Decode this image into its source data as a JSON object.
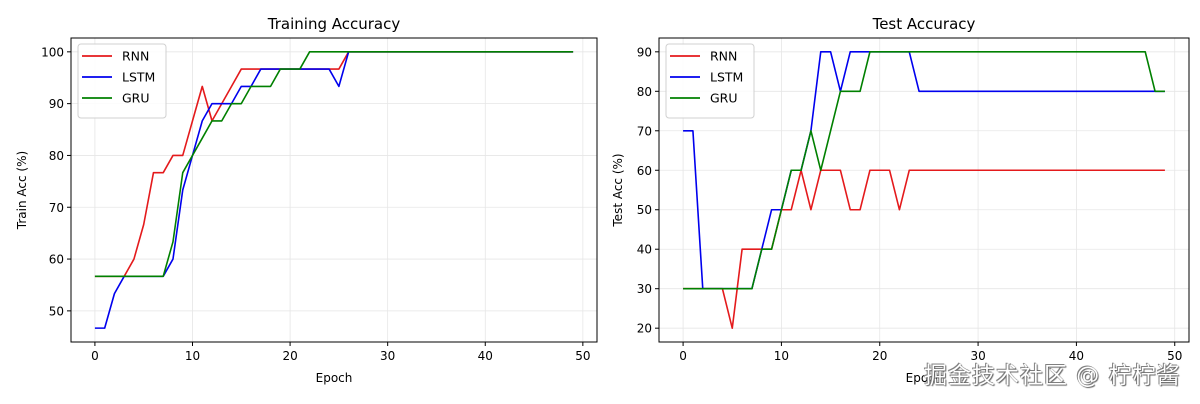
{
  "figure": {
    "watermark": "掘金技术社区 @ 柠柠酱",
    "colors": {
      "RNN": "#e41a1c",
      "LSTM": "#0000ee",
      "GRU": "#008000",
      "grid": "#e6e6e6"
    }
  },
  "chart_data": [
    {
      "type": "line",
      "title": "Training Accuracy",
      "xlabel": "Epoch",
      "ylabel": "Train Acc (%)",
      "xlim": [
        -2.45,
        51.45
      ],
      "ylim": [
        43.99,
        102.67
      ],
      "xticks": [
        0,
        10,
        20,
        30,
        40,
        50
      ],
      "yticks": [
        50,
        60,
        70,
        80,
        90,
        100
      ],
      "grid": true,
      "legend_position": "upper left",
      "x": [
        0,
        1,
        2,
        3,
        4,
        5,
        6,
        7,
        8,
        9,
        10,
        11,
        12,
        13,
        14,
        15,
        16,
        17,
        18,
        19,
        20,
        21,
        22,
        23,
        24,
        25,
        26,
        27,
        28,
        29,
        30,
        31,
        32,
        33,
        34,
        35,
        36,
        37,
        38,
        39,
        40,
        41,
        42,
        43,
        44,
        45,
        46,
        47,
        48,
        49
      ],
      "series": [
        {
          "name": "RNN",
          "color": "#e41a1c",
          "values": [
            56.67,
            56.67,
            56.67,
            56.67,
            60,
            66.67,
            76.67,
            76.67,
            80,
            80,
            86.67,
            93.33,
            86.67,
            90,
            93.33,
            96.67,
            96.67,
            96.67,
            96.67,
            96.67,
            96.67,
            96.67,
            96.67,
            96.67,
            96.67,
            96.67,
            100,
            100,
            100,
            100,
            100,
            100,
            100,
            100,
            100,
            100,
            100,
            100,
            100,
            100,
            100,
            100,
            100,
            100,
            100,
            100,
            100,
            100,
            100,
            100
          ]
        },
        {
          "name": "LSTM",
          "color": "#0000ee",
          "values": [
            46.67,
            46.67,
            53.33,
            56.67,
            56.67,
            56.67,
            56.67,
            56.67,
            60,
            73.33,
            80,
            86.67,
            90,
            90,
            90,
            93.33,
            93.33,
            96.67,
            96.67,
            96.67,
            96.67,
            96.67,
            96.67,
            96.67,
            96.67,
            93.33,
            100,
            100,
            100,
            100,
            100,
            100,
            100,
            100,
            100,
            100,
            100,
            100,
            100,
            100,
            100,
            100,
            100,
            100,
            100,
            100,
            100,
            100,
            100,
            100
          ]
        },
        {
          "name": "GRU",
          "color": "#008000",
          "values": [
            56.67,
            56.67,
            56.67,
            56.67,
            56.67,
            56.67,
            56.67,
            56.67,
            63.33,
            76.67,
            80,
            83.33,
            86.67,
            86.67,
            90,
            90,
            93.33,
            93.33,
            93.33,
            96.67,
            96.67,
            96.67,
            100,
            100,
            100,
            100,
            100,
            100,
            100,
            100,
            100,
            100,
            100,
            100,
            100,
            100,
            100,
            100,
            100,
            100,
            100,
            100,
            100,
            100,
            100,
            100,
            100,
            100,
            100,
            100
          ]
        }
      ]
    },
    {
      "type": "line",
      "title": "Test Accuracy",
      "xlabel": "Epoch",
      "ylabel": "Test Acc (%)",
      "xlim": [
        -2.45,
        51.45
      ],
      "ylim": [
        16.5,
        93.5
      ],
      "xticks": [
        0,
        10,
        20,
        30,
        40,
        50
      ],
      "yticks": [
        20,
        30,
        40,
        50,
        60,
        70,
        80,
        90
      ],
      "grid": true,
      "legend_position": "upper left",
      "x": [
        0,
        1,
        2,
        3,
        4,
        5,
        6,
        7,
        8,
        9,
        10,
        11,
        12,
        13,
        14,
        15,
        16,
        17,
        18,
        19,
        20,
        21,
        22,
        23,
        24,
        25,
        26,
        27,
        28,
        29,
        30,
        31,
        32,
        33,
        34,
        35,
        36,
        37,
        38,
        39,
        40,
        41,
        42,
        43,
        44,
        45,
        46,
        47,
        48,
        49
      ],
      "series": [
        {
          "name": "RNN",
          "color": "#e41a1c",
          "values": [
            30,
            30,
            30,
            30,
            30,
            20,
            40,
            40,
            40,
            40,
            50,
            50,
            60,
            50,
            60,
            60,
            60,
            50,
            50,
            60,
            60,
            60,
            50,
            60,
            60,
            60,
            60,
            60,
            60,
            60,
            60,
            60,
            60,
            60,
            60,
            60,
            60,
            60,
            60,
            60,
            60,
            60,
            60,
            60,
            60,
            60,
            60,
            60,
            60,
            60
          ]
        },
        {
          "name": "LSTM",
          "color": "#0000ee",
          "values": [
            70,
            70,
            30,
            30,
            30,
            30,
            30,
            30,
            40,
            50,
            50,
            60,
            60,
            70,
            90,
            90,
            80,
            90,
            90,
            90,
            90,
            90,
            90,
            90,
            80,
            80,
            80,
            80,
            80,
            80,
            80,
            80,
            80,
            80,
            80,
            80,
            80,
            80,
            80,
            80,
            80,
            80,
            80,
            80,
            80,
            80,
            80,
            80,
            80,
            80
          ]
        },
        {
          "name": "GRU",
          "color": "#008000",
          "values": [
            30,
            30,
            30,
            30,
            30,
            30,
            30,
            30,
            40,
            40,
            50,
            60,
            60,
            70,
            60,
            70,
            80,
            80,
            80,
            90,
            90,
            90,
            90,
            90,
            90,
            90,
            90,
            90,
            90,
            90,
            90,
            90,
            90,
            90,
            90,
            90,
            90,
            90,
            90,
            90,
            90,
            90,
            90,
            90,
            90,
            90,
            90,
            90,
            80,
            80
          ]
        }
      ]
    }
  ]
}
